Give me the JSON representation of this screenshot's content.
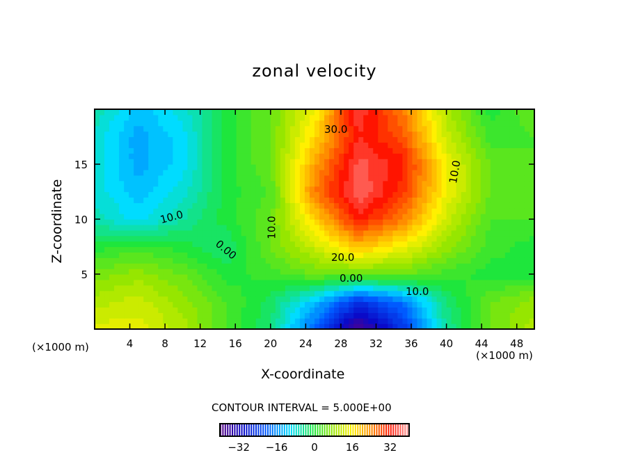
{
  "chart_data": {
    "type": "heatmap",
    "subtype": "filled contour",
    "title": "zonal velocity",
    "xlabel": "X-coordinate",
    "ylabel": "Z-coordinate",
    "x_unit": "(×1000 m)",
    "y_unit": "(×1000 m)",
    "xlim": [
      0,
      50
    ],
    "ylim": [
      0,
      20
    ],
    "x_ticks": [
      "4",
      "8",
      "12",
      "16",
      "20",
      "24",
      "28",
      "32",
      "36",
      "40",
      "44",
      "48"
    ],
    "y_ticks": [
      "5",
      "10",
      "15"
    ],
    "contour_interval_text": "CONTOUR INTERVAL = 5.000E+00",
    "contour_labels": [
      "30.0",
      "10.0",
      "10.0",
      "0.00",
      "10.0",
      "20.0",
      "0.00",
      "10.0"
    ],
    "colorbar": {
      "range": [
        -40,
        40
      ],
      "ticks": [
        "−32",
        "−16",
        "0",
        "16",
        "32"
      ]
    },
    "grid_x": [
      0,
      5,
      10,
      15,
      20,
      25,
      30,
      35,
      40,
      45,
      50
    ],
    "grid_z": [
      0,
      2.5,
      5,
      7.5,
      10,
      12.5,
      15,
      17.5,
      20
    ],
    "values": [
      [
        14,
        14,
        10,
        3,
        -3,
        -20,
        -38,
        -25,
        -5,
        5,
        10
      ],
      [
        10,
        12,
        8,
        3,
        -2,
        -12,
        -25,
        -18,
        -3,
        5,
        8
      ],
      [
        6,
        8,
        5,
        0,
        2,
        5,
        5,
        5,
        2,
        0,
        0
      ],
      [
        0,
        2,
        0,
        -3,
        5,
        12,
        20,
        15,
        8,
        2,
        0
      ],
      [
        -6,
        -10,
        -5,
        0,
        5,
        18,
        32,
        25,
        12,
        3,
        3
      ],
      [
        -8,
        -12,
        -8,
        0,
        3,
        25,
        37,
        30,
        15,
        5,
        3
      ],
      [
        -8,
        -14,
        -10,
        0,
        5,
        22,
        36,
        32,
        15,
        5,
        3
      ],
      [
        -8,
        -14,
        -10,
        0,
        5,
        18,
        33,
        28,
        12,
        2,
        3
      ],
      [
        -5,
        -12,
        -8,
        0,
        5,
        15,
        35,
        25,
        10,
        0,
        5
      ]
    ]
  }
}
